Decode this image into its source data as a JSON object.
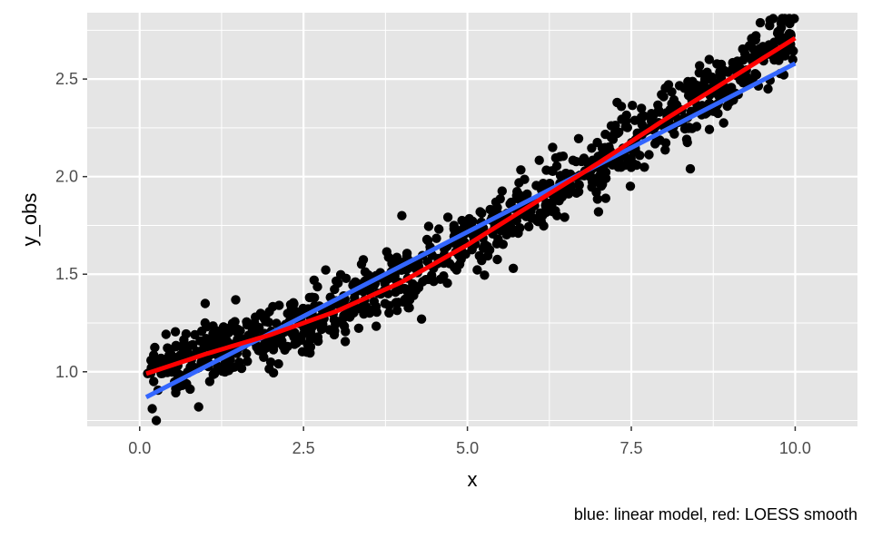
{
  "chart_data": {
    "type": "scatter",
    "title": "",
    "xlabel": "x",
    "ylabel": "y_obs",
    "caption": "blue: linear model, red: LOESS smooth",
    "xlim": [
      -0.8,
      10.95
    ],
    "ylim": [
      0.72,
      2.84
    ],
    "x_ticks": [
      0,
      2.5,
      5,
      7.5,
      10
    ],
    "x_tick_labels": [
      "0.0",
      "2.5",
      "5.0",
      "7.5",
      "10.0"
    ],
    "y_ticks": [
      1.0,
      1.5,
      2.0,
      2.5
    ],
    "y_tick_labels": [
      "1.0",
      "1.5",
      "2.0",
      "2.5"
    ],
    "grid": true,
    "colors": {
      "panel": "#e5e5e5",
      "grid": "#ffffff",
      "points": "#000000",
      "linear": "#3366ff",
      "loess": "#ff0000"
    },
    "points": {
      "n": 1000,
      "x_range": [
        0.1,
        10.0
      ],
      "outliers": [
        [
          0.9,
          0.82
        ],
        [
          1.0,
          1.35
        ],
        [
          4.0,
          1.8
        ],
        [
          4.3,
          1.27
        ],
        [
          6.3,
          2.15
        ],
        [
          8.4,
          2.04
        ],
        [
          7.0,
          1.82
        ],
        [
          5.7,
          1.53
        ]
      ]
    },
    "series": [
      {
        "fit": "linear",
        "x": [
          0.1,
          10.0
        ],
        "y": [
          0.87,
          2.58
        ]
      },
      {
        "fit": "loess",
        "x": [
          0.1,
          1,
          2,
          3,
          4,
          5,
          6,
          7,
          8,
          9,
          10
        ],
        "y": [
          0.99,
          1.09,
          1.19,
          1.31,
          1.46,
          1.65,
          1.86,
          2.07,
          2.29,
          2.5,
          2.71
        ]
      }
    ]
  }
}
